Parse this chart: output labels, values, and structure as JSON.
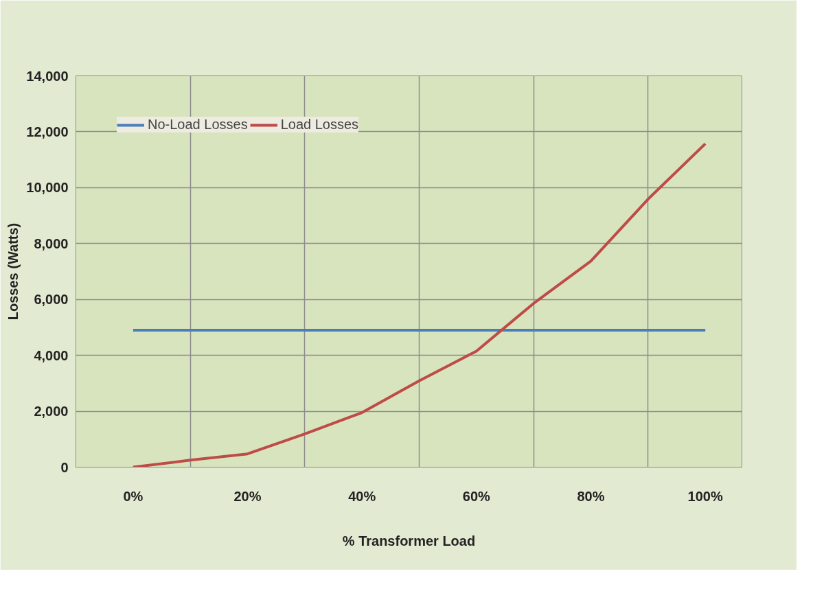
{
  "chart_data": {
    "type": "line",
    "xlabel": "% Transformer Load",
    "ylabel": "Losses (Watts)",
    "x": [
      0,
      10,
      20,
      30,
      40,
      50,
      60,
      70,
      80,
      90,
      100
    ],
    "series": [
      {
        "name": "No-Load Losses",
        "color": "#4a7ebb",
        "values": [
          4900,
          4900,
          4900,
          4900,
          4900,
          4900,
          4900,
          4900,
          4900,
          4900,
          4900
        ]
      },
      {
        "name": "Load Losses",
        "color": "#be4b48",
        "values": [
          0,
          250,
          475,
          1190,
          1950,
          3090,
          4150,
          5860,
          7370,
          9590,
          11570
        ]
      }
    ],
    "xlim": [
      -10,
      106.4
    ],
    "xticks": [
      {
        "value": -10,
        "label": null
      },
      {
        "value": 0,
        "label": "0%"
      },
      {
        "value": 10,
        "label": null
      },
      {
        "value": 20,
        "label": "20%"
      },
      {
        "value": 30,
        "label": null
      },
      {
        "value": 40,
        "label": "40%"
      },
      {
        "value": 50,
        "label": null
      },
      {
        "value": 60,
        "label": "60%"
      },
      {
        "value": 70,
        "label": null
      },
      {
        "value": 80,
        "label": "80%"
      },
      {
        "value": 90,
        "label": null
      },
      {
        "value": 100,
        "label": "100%"
      }
    ],
    "ylim": [
      0,
      14000
    ],
    "yticks": [
      {
        "value": 0,
        "label": "0"
      },
      {
        "value": 2000,
        "label": "2,000"
      },
      {
        "value": 4000,
        "label": "4,000"
      },
      {
        "value": 6000,
        "label": "6,000"
      },
      {
        "value": 8000,
        "label": "8,000"
      },
      {
        "value": 10000,
        "label": "10,000"
      },
      {
        "value": 12000,
        "label": "12,000"
      },
      {
        "value": 14000,
        "label": "14,000"
      }
    ],
    "grid": true,
    "legend": "top left",
    "marker": "none",
    "line_style": "solid"
  }
}
